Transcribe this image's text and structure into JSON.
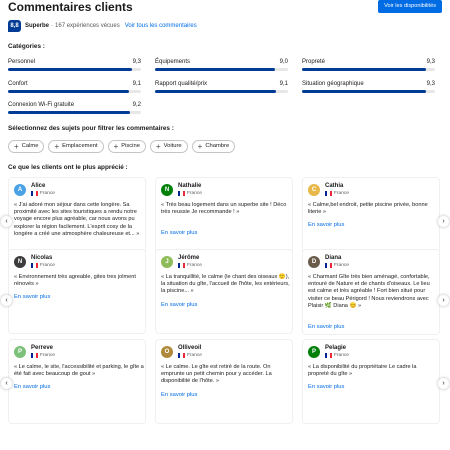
{
  "header": {
    "title": "Commentaires clients",
    "cta_label": "Voir les disponibilités"
  },
  "score": {
    "value": "8,8",
    "label": "Superbe",
    "separator": "·",
    "count": "167 expériences vécues",
    "link": "Voir tous les commentaires"
  },
  "categories_heading": "Catégories :",
  "categories": [
    {
      "label": "Personnel",
      "value": "9,3",
      "score": 9.3
    },
    {
      "label": "Équipements",
      "value": "9,0",
      "score": 9.0
    },
    {
      "label": "Propreté",
      "value": "9,3",
      "score": 9.3
    },
    {
      "label": "Confort",
      "value": "9,1",
      "score": 9.1
    },
    {
      "label": "Rapport qualité/prix",
      "value": "9,1",
      "score": 9.1
    },
    {
      "label": "Situation géographique",
      "value": "9,3",
      "score": 9.3
    },
    {
      "label": "Connexion Wi-Fi gratuite",
      "value": "9,2",
      "score": 9.2
    }
  ],
  "topics_heading": "Sélectionnez des sujets pour filtrer les commentaires :",
  "topics": [
    {
      "label": "Calme"
    },
    {
      "label": "Emplacement"
    },
    {
      "label": "Piscine"
    },
    {
      "label": "Voiture"
    },
    {
      "label": "Chambre"
    }
  ],
  "reviews_heading": "Ce que les clients ont le plus apprécié :",
  "read_more": "En savoir plus",
  "arrow_left": "‹",
  "arrow_right": "›",
  "chip_plus": "+",
  "reviews": [
    {
      "name": "Alice",
      "initial": "A",
      "avatar_color": "#4aa1e3",
      "country": "France",
      "text": "« J'ai adoré mon séjour dans cette longère. Sa proximité avec les sites touristiques a rendu notre voyage encore plus agréable, car nous avons pu explorer la région facilement. L'esprit cosy de la longère a créé une atmosphère chaleureuse et... »"
    },
    {
      "name": "Nathalie",
      "initial": "N",
      "avatar_color": "#008009",
      "country": "France",
      "text": "« Très beau logement dans un superbe site ! Déco très reussie Je recommande ! »"
    },
    {
      "name": "Cathia",
      "initial": "C",
      "avatar_color": "#e8b84a",
      "country": "France",
      "text": "« Calme,bel endroit, petite piscine privée, bonne literie »"
    },
    {
      "name": "Nicolas",
      "initial": "N",
      "avatar_color": "#3c3c3c",
      "country": "France",
      "text": "« Environnement très agreable, gites tres jolment rénovés »"
    },
    {
      "name": "Jérôme",
      "initial": "J",
      "avatar_color": "#8fbc5a",
      "country": "France",
      "text": "« La tranquillité, le calme (le chant des oiseaux 🙂), la situation du gîte, l'accueil de l'hôte, les extérieurs, la piscine... »"
    },
    {
      "name": "Diana",
      "initial": "D",
      "avatar_color": "#6b5b4b",
      "country": "France",
      "text": "« Charmant Gîte très bien aménagé, confortable, entouré de Nature et de chants d'oiseaux. Le lieu est calme et très agréable ! Fort bien situé pour visiter ce beau Périgord ! Nous reviendrons avec Plaisir 🌿 Diana 😊 »"
    },
    {
      "name": "Perreve",
      "initial": "P",
      "avatar_color": "#7cc07a",
      "country": "France",
      "text": "« Le calme, le site, l'accessibilité et parking, le gîte a été fait avec beaucoup de gout »"
    },
    {
      "name": "Olliveoil",
      "initial": "O",
      "avatar_color": "#b08a3c",
      "country": "France",
      "text": "« Le calme. Le gîte est retiré de la route. On emprunte un petit chemin pour y accéder. La disponibilité de l'hôte. »"
    },
    {
      "name": "Pelagie",
      "initial": "P",
      "avatar_color": "#008009",
      "country": "France",
      "text": "« La disponibilité du propriétaire Le cadre la propreté du gîte »"
    }
  ]
}
